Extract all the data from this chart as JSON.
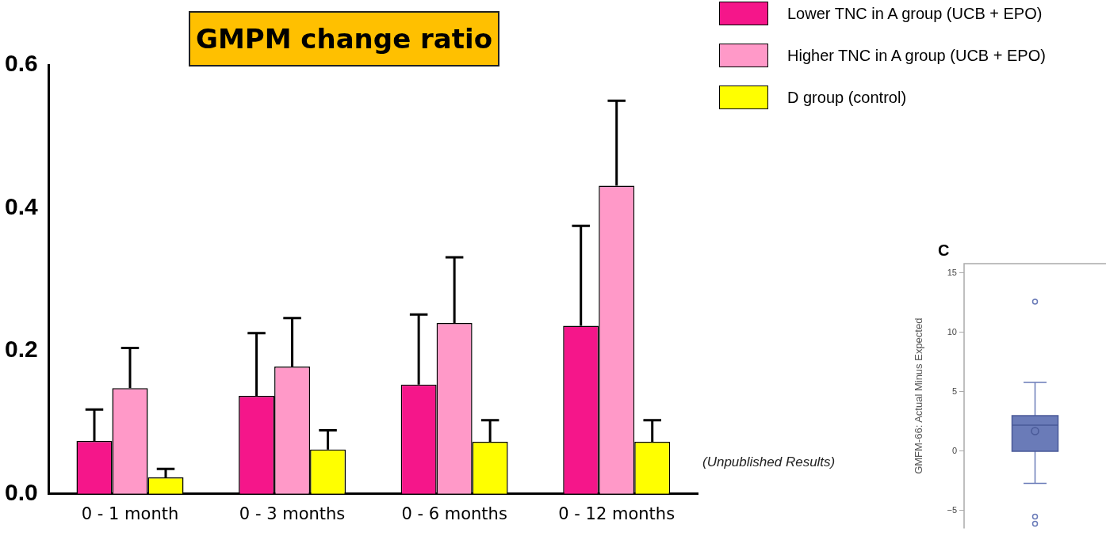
{
  "chart_data": [
    {
      "type": "bar",
      "title": "GMPM change ratio",
      "categories": [
        "0 - 1 month",
        "0 - 3 months",
        "0 - 6 months",
        "0 - 12 months"
      ],
      "series": [
        {
          "name": "Lower TNC in A group (UCB + EPO)",
          "color": "#f5168a",
          "values": [
            0.074,
            0.137,
            0.153,
            0.235
          ],
          "errors": [
            [
              0.074,
              0.118
            ],
            [
              0.137,
              0.225
            ],
            [
              0.153,
              0.251
            ],
            [
              0.235,
              0.375
            ]
          ]
        },
        {
          "name": "Higher TNC in A group (UCB + EPO)",
          "color": "#ff99c8",
          "values": [
            0.148,
            0.178,
            0.239,
            0.431
          ],
          "errors": [
            [
              0.148,
              0.204
            ],
            [
              0.178,
              0.246
            ],
            [
              0.239,
              0.331
            ],
            [
              0.431,
              0.55
            ]
          ]
        },
        {
          "name": "D group (control)",
          "color": "#ffff00",
          "values": [
            0.023,
            0.062,
            0.073,
            0.073
          ],
          "errors": [
            [
              0.023,
              0.035
            ],
            [
              0.062,
              0.089
            ],
            [
              0.073,
              0.103
            ],
            [
              0.073,
              0.103
            ]
          ]
        }
      ],
      "ylim": [
        0,
        0.6
      ],
      "yticks": [
        {
          "value": 0,
          "label": "0.0"
        },
        0.2,
        0.4,
        0.6
      ],
      "grid": false,
      "legend": "top right",
      "annotations": [
        "(Unpublished Results)"
      ]
    },
    {
      "type": "box",
      "title": "C",
      "ylabel": "GMFM-66: Actual Minus Expected",
      "categories": [
        null
      ],
      "series": [
        {
          "color": "#6a7bb8",
          "boxes": [
            {
              "low": -2.7,
              "q1": 0,
              "median": 2.2,
              "q3": 3.0,
              "high": 5.8,
              "mean": 1.7,
              "outliers": [
                12.6,
                -5.5,
                -6.1
              ]
            }
          ]
        }
      ],
      "ylim": [
        -6.5,
        15.8
      ],
      "yticks": [
        {
          "value": -5,
          "label": "−5"
        },
        0,
        5,
        10,
        15
      ],
      "grid": false
    }
  ]
}
